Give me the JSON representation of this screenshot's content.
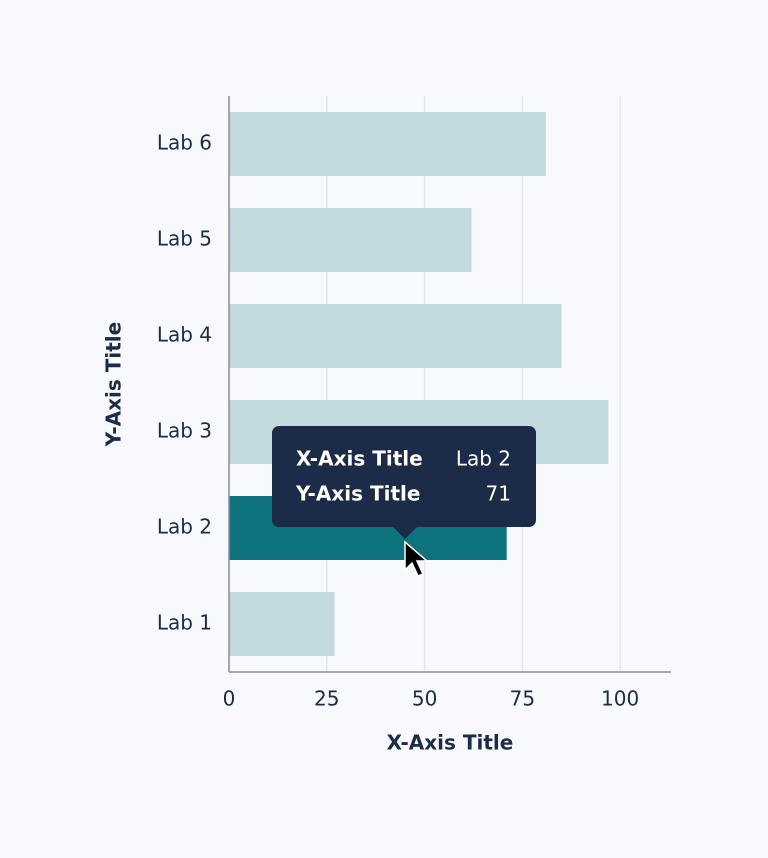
{
  "chart_data": {
    "type": "bar",
    "orientation": "horizontal",
    "x_label": "X-Axis Title",
    "y_label": "Y-Axis Title",
    "categories": [
      "Lab 1",
      "Lab 2",
      "Lab 3",
      "Lab 4",
      "Lab 5",
      "Lab 6"
    ],
    "values": [
      27,
      71,
      97,
      85,
      62,
      81
    ],
    "colors": [
      "#c2dade",
      "#0f737e",
      "#c2dade",
      "#c2dade",
      "#c2dade",
      "#c2dade"
    ],
    "xlim": [
      0,
      113
    ],
    "xticks": [
      0,
      25,
      50,
      75,
      100
    ],
    "grid": true
  }
}
